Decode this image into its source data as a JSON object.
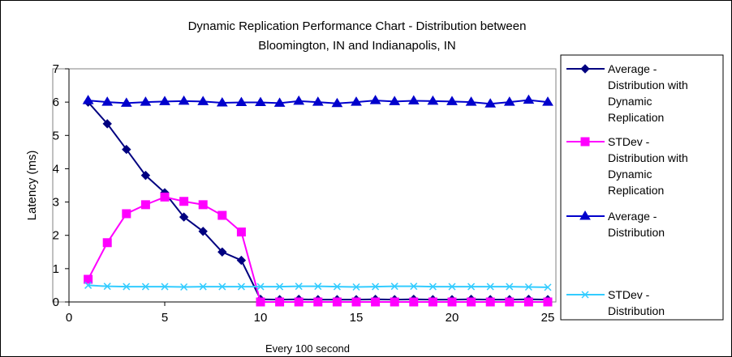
{
  "chart_data": {
    "type": "line",
    "title": [
      "Dynamic Replication Performance Chart - Distribution between",
      "Bloomington, IN and Indianapolis, IN"
    ],
    "xlabel": "Every 100 second",
    "ylabel": "Latency (ms)",
    "xlim": [
      0,
      25
    ],
    "ylim": [
      0,
      7
    ],
    "x_ticks": [
      "0",
      "5",
      "10",
      "15",
      "20",
      "25"
    ],
    "y_ticks": [
      "0",
      "1",
      "2",
      "3",
      "4",
      "5",
      "6",
      "7"
    ],
    "grid": false,
    "legend_position": "right",
    "x": [
      1,
      2,
      3,
      4,
      5,
      6,
      7,
      8,
      9,
      10,
      11,
      12,
      13,
      14,
      15,
      16,
      17,
      18,
      19,
      20,
      21,
      22,
      23,
      24,
      25
    ],
    "series": [
      {
        "name": [
          "Average -",
          "Distribution with",
          "Dynamic",
          "Replication"
        ],
        "color": "#000080",
        "marker": "diamond",
        "values": [
          6.0,
          5.35,
          4.58,
          3.8,
          3.28,
          2.55,
          2.12,
          1.5,
          1.25,
          0.08,
          0.07,
          0.08,
          0.07,
          0.07,
          0.07,
          0.08,
          0.07,
          0.08,
          0.07,
          0.07,
          0.08,
          0.07,
          0.07,
          0.08,
          0.07
        ]
      },
      {
        "name": [
          "STDev -",
          "Distribution with",
          "Dynamic",
          "Replication"
        ],
        "color": "#FF00FF",
        "marker": "square",
        "values": [
          0.68,
          1.78,
          2.65,
          2.92,
          3.15,
          3.02,
          2.92,
          2.6,
          2.1,
          0.0,
          0.0,
          0.0,
          0.0,
          0.0,
          0.0,
          0.0,
          0.0,
          0.0,
          0.0,
          0.0,
          0.0,
          0.0,
          0.0,
          0.0,
          0.0
        ]
      },
      {
        "name": [
          "Average -",
          "Distribution"
        ],
        "color": "#0000CC",
        "marker": "triangle",
        "values": [
          6.05,
          6.0,
          5.97,
          6.0,
          6.02,
          6.03,
          6.02,
          5.98,
          5.99,
          5.99,
          5.97,
          6.03,
          6.0,
          5.96,
          6.0,
          6.05,
          6.02,
          6.04,
          6.03,
          6.02,
          6.0,
          5.95,
          6.0,
          6.06,
          6.0
        ]
      },
      {
        "name": [
          "STDev -",
          "Distribution"
        ],
        "color": "#33CCFF",
        "marker": "x",
        "values": [
          0.5,
          0.47,
          0.46,
          0.46,
          0.46,
          0.45,
          0.46,
          0.46,
          0.46,
          0.46,
          0.46,
          0.47,
          0.47,
          0.46,
          0.45,
          0.46,
          0.47,
          0.47,
          0.46,
          0.46,
          0.46,
          0.46,
          0.46,
          0.45,
          0.44
        ]
      }
    ]
  }
}
